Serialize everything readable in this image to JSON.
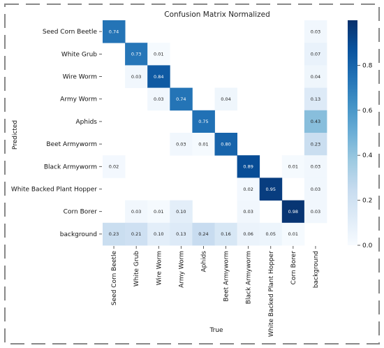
{
  "chart_data": {
    "type": "heatmap",
    "title": "Confusion Matrix Normalized",
    "xlabel": "True",
    "ylabel": "Predicted",
    "classes": [
      "Seed Corn Beetle",
      "White Grub",
      "Wire Worm",
      "Army Worm",
      "Aphids",
      "Beet Armyworm",
      "Black Armyworm",
      "White Backed Plant Hopper",
      "Corn Borer",
      "background"
    ],
    "matrix": [
      [
        0.74,
        null,
        null,
        null,
        null,
        null,
        null,
        null,
        null,
        0.03
      ],
      [
        null,
        0.73,
        0.01,
        null,
        null,
        null,
        null,
        null,
        null,
        0.07
      ],
      [
        null,
        0.03,
        0.84,
        null,
        null,
        null,
        null,
        null,
        null,
        0.04
      ],
      [
        null,
        null,
        0.03,
        0.74,
        null,
        0.04,
        null,
        null,
        null,
        0.13
      ],
      [
        null,
        null,
        null,
        null,
        0.75,
        null,
        null,
        null,
        null,
        0.43
      ],
      [
        null,
        null,
        null,
        0.03,
        0.01,
        0.8,
        null,
        null,
        null,
        0.23
      ],
      [
        0.02,
        null,
        null,
        null,
        null,
        null,
        0.89,
        null,
        0.01,
        0.03
      ],
      [
        null,
        null,
        null,
        null,
        null,
        null,
        0.02,
        0.95,
        null,
        0.03
      ],
      [
        null,
        0.03,
        0.01,
        0.1,
        null,
        null,
        0.03,
        null,
        0.98,
        0.03
      ],
      [
        0.23,
        0.21,
        0.1,
        0.13,
        0.24,
        0.16,
        0.06,
        0.05,
        0.01,
        null
      ]
    ],
    "colorbar": {
      "range": [
        0.0,
        1.0
      ],
      "ticks": [
        "0.0",
        "0.2",
        "0.4",
        "0.6",
        "0.8"
      ]
    },
    "colormap": [
      "#f7fbff",
      "#deebf7",
      "#c6dbef",
      "#9ecae1",
      "#6baed6",
      "#4292c6",
      "#2171b5",
      "#08519c",
      "#08306b"
    ]
  }
}
